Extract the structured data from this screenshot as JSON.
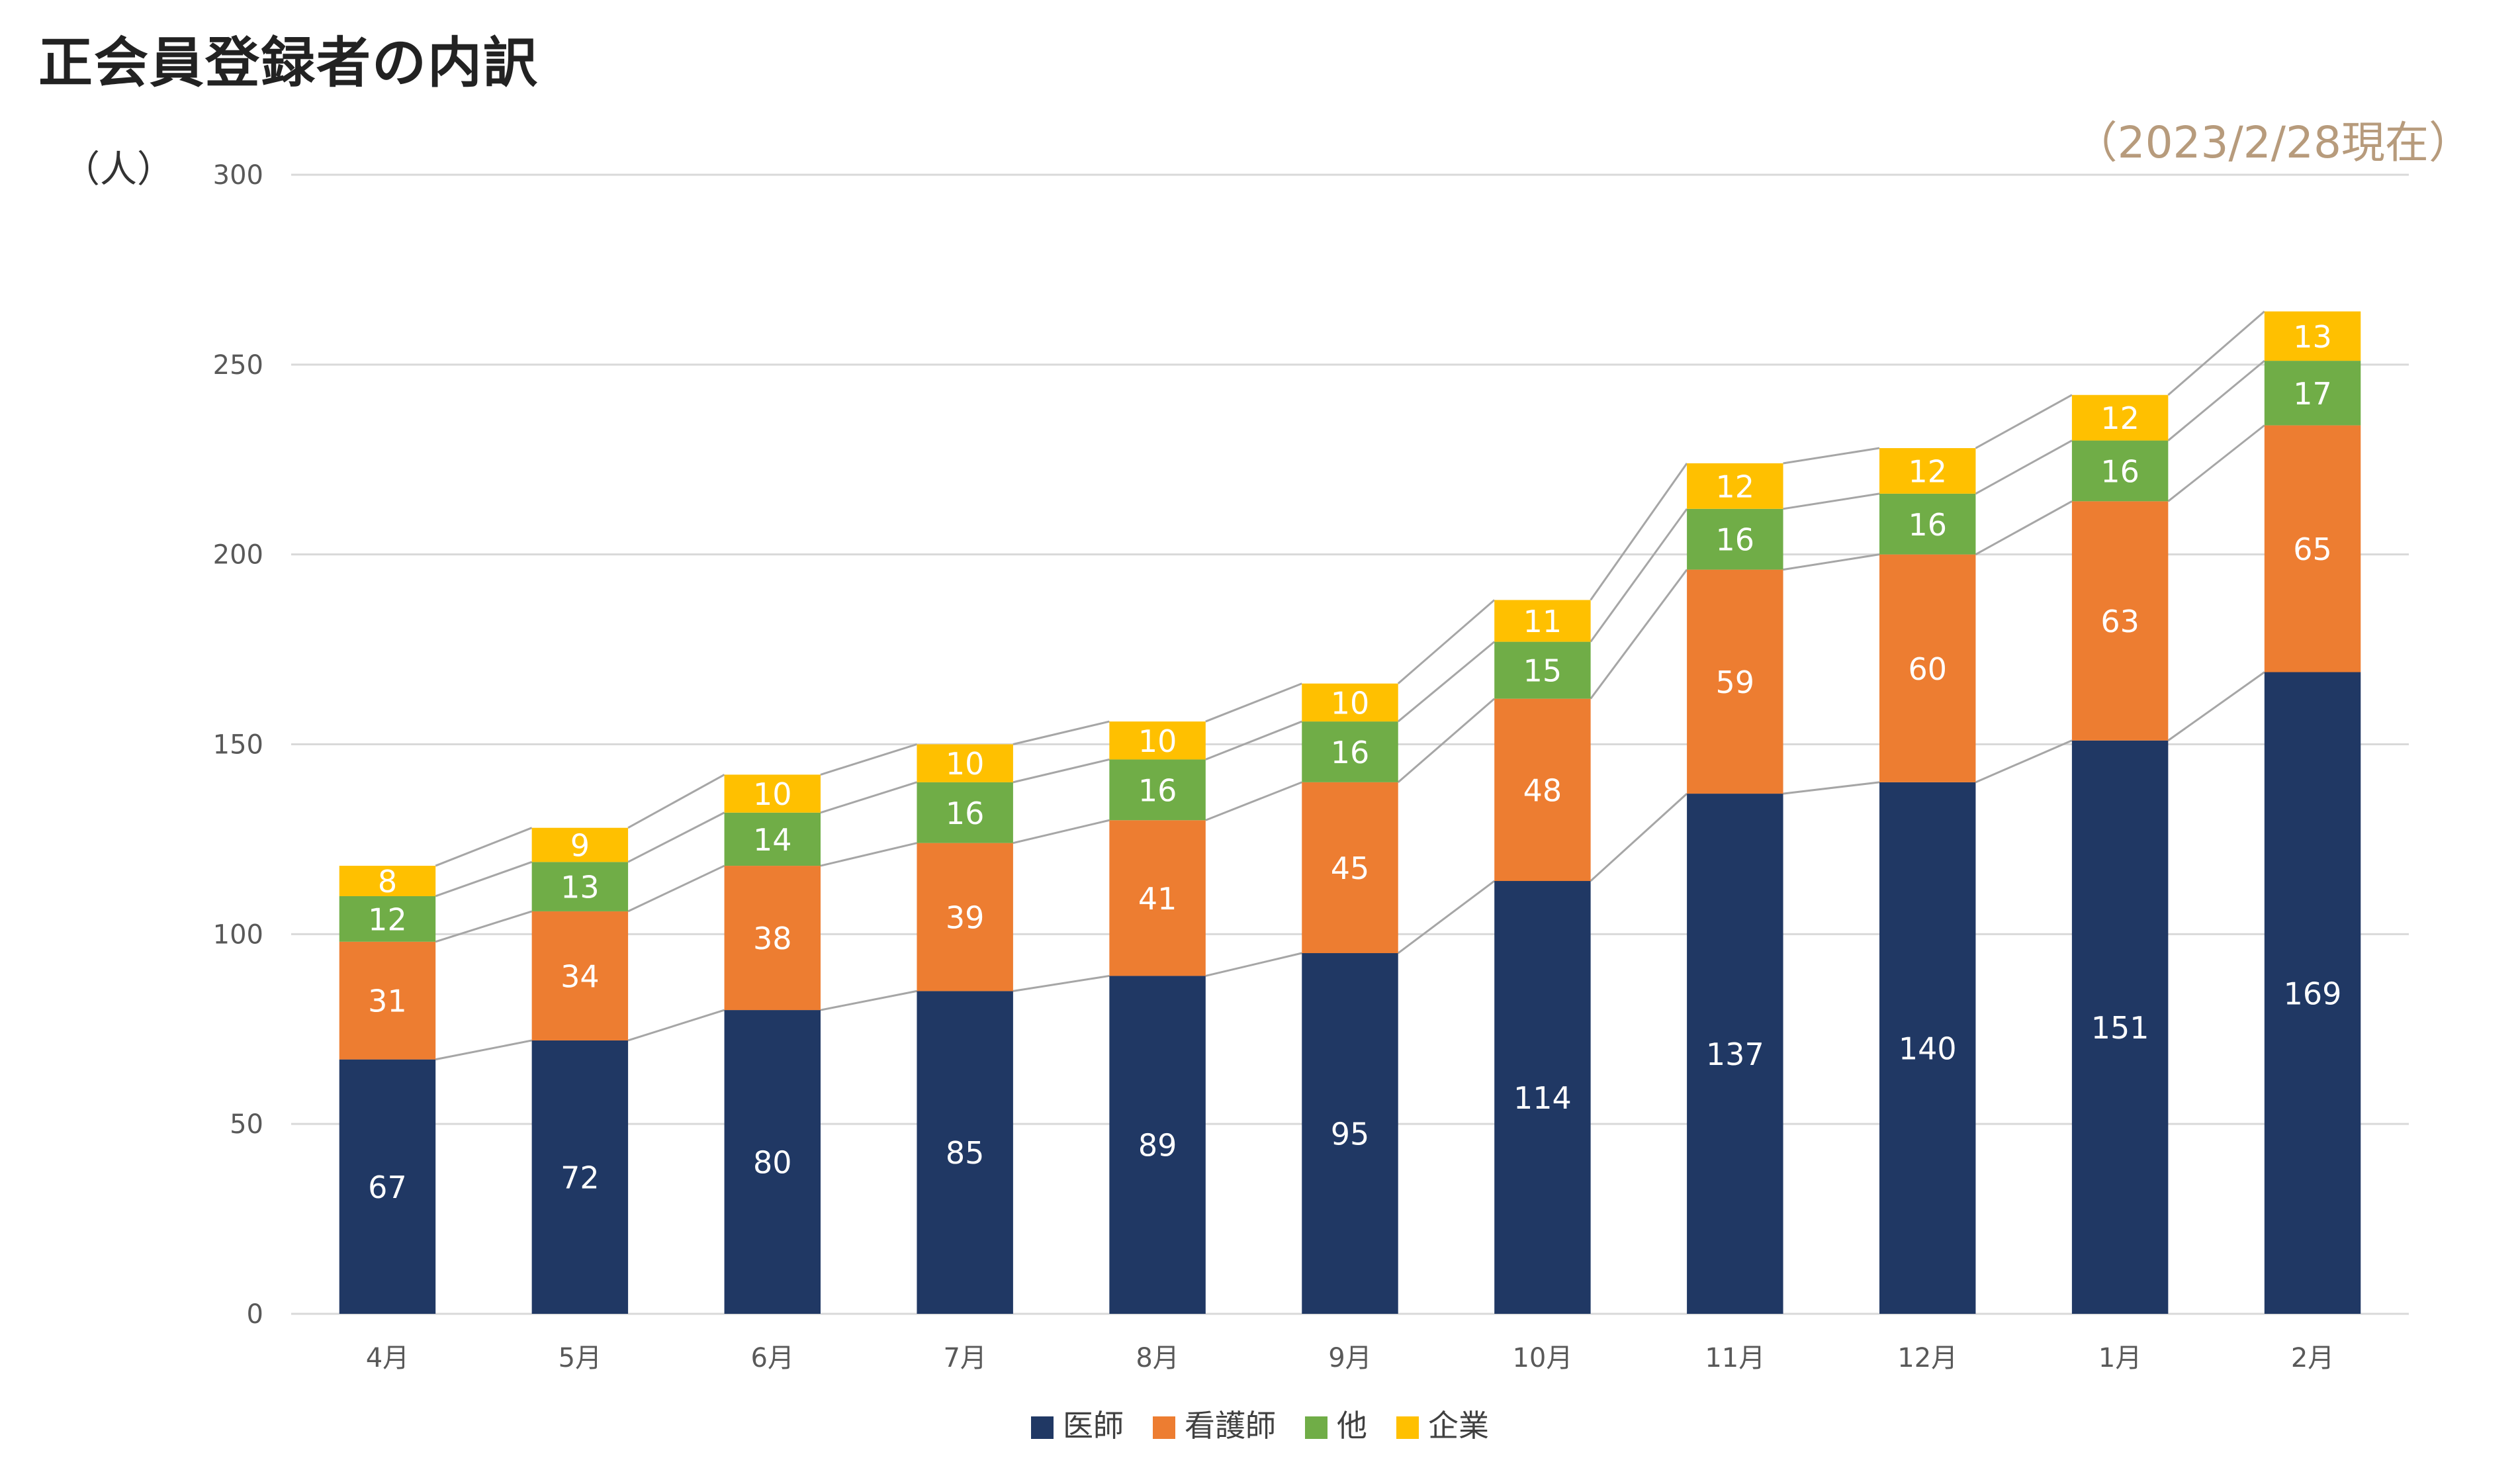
{
  "title": "正会員登録者の内訳",
  "as_of": "（2023/2/28現在）",
  "colors": {
    "doctor": "#203864",
    "nurse": "#ed7d31",
    "other": "#70ad47",
    "company": "#ffc000",
    "grid": "#d9d9d9",
    "connector": "#a6a6a6",
    "tick_text": "#595959",
    "label_text": "#ffffff"
  },
  "chart_data": {
    "type": "bar",
    "stacked": true,
    "title": "正会員登録者の内訳",
    "ylabel": "（人）",
    "xlabel": "",
    "ylim": [
      0,
      300
    ],
    "yticks": [
      0,
      50,
      100,
      150,
      200,
      250,
      300
    ],
    "grid": true,
    "legend_position": "bottom",
    "series_lines": true,
    "categories": [
      "4月",
      "5月",
      "6月",
      "7月",
      "8月",
      "9月",
      "10月",
      "11月",
      "12月",
      "1月",
      "2月"
    ],
    "series": [
      {
        "name": "医師",
        "color": "#203864",
        "values": [
          67,
          72,
          80,
          85,
          89,
          95,
          114,
          137,
          140,
          151,
          169
        ]
      },
      {
        "name": "看護師",
        "color": "#ed7d31",
        "values": [
          31,
          34,
          38,
          39,
          41,
          45,
          48,
          59,
          60,
          63,
          65
        ]
      },
      {
        "name": "他",
        "color": "#70ad47",
        "values": [
          12,
          13,
          14,
          16,
          16,
          16,
          15,
          16,
          16,
          16,
          17
        ]
      },
      {
        "name": "企業",
        "color": "#ffc000",
        "values": [
          8,
          9,
          10,
          10,
          10,
          10,
          11,
          12,
          12,
          12,
          13
        ]
      }
    ]
  }
}
